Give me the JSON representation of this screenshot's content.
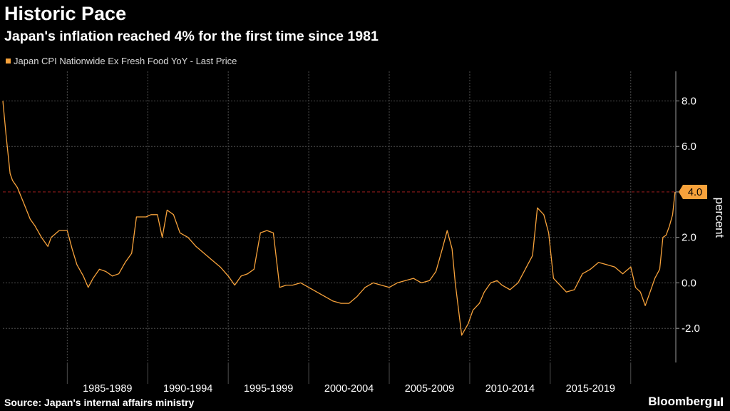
{
  "header": {
    "title": "Historic Pace",
    "subtitle": "Japan's inflation reached 4% for the first time since 1981"
  },
  "footer": {
    "source": "Source: Japan's internal affairs ministry",
    "brand": "Bloomberg",
    "brand_icon": "bloomberg-bars-icon"
  },
  "colors": {
    "background": "#000000",
    "line": "#f7a23b",
    "grid": "#4d4d4d",
    "reference": "#8b1a1a",
    "text": "#ffffff"
  },
  "chart_data": {
    "type": "line",
    "title": "Historic Pace",
    "subtitle": "Japan's inflation reached 4% for the first time since 1981",
    "xlabel": "",
    "ylabel": "percent",
    "legend": [
      "Japan CPI Nationwide Ex Fresh Food YoY - Last Price"
    ],
    "legend_position": "top-left",
    "x_range": [
      1981.0,
      2022.8
    ],
    "ylim": [
      -3.5,
      9.3
    ],
    "y_ticks": [
      -2.0,
      0.0,
      2.0,
      4.0,
      6.0,
      8.0
    ],
    "y_tick_labels": [
      "-2.0",
      "0.0",
      "2.0",
      "4.0",
      "6.0",
      "8.0"
    ],
    "x_tick_boundaries": [
      1985,
      1990,
      1995,
      2000,
      2005,
      2010,
      2015,
      2020
    ],
    "x_tick_labels": [
      "1985-1989",
      "1990-1994",
      "1995-1999",
      "2000-2004",
      "2005-2009",
      "2010-2014",
      "2015-2019"
    ],
    "grid": true,
    "reference_line": {
      "value": 4.0,
      "label": "4.0"
    },
    "series": [
      {
        "name": "Japan CPI Nationwide Ex Fresh Food YoY - Last Price",
        "x": [
          1981.0,
          1981.2,
          1981.45,
          1981.6,
          1981.9,
          1982.3,
          1982.7,
          1983.0,
          1983.4,
          1983.8,
          1984.0,
          1984.5,
          1984.8,
          1985.0,
          1985.3,
          1985.6,
          1986.0,
          1986.3,
          1986.6,
          1987.0,
          1987.4,
          1987.8,
          1988.2,
          1988.6,
          1989.0,
          1989.3,
          1989.6,
          1989.9,
          1990.2,
          1990.6,
          1990.9,
          1991.2,
          1991.6,
          1992.0,
          1992.5,
          1993.0,
          1993.5,
          1994.0,
          1994.5,
          1995.0,
          1995.4,
          1995.8,
          1996.2,
          1996.6,
          1997.0,
          1997.4,
          1997.8,
          1998.2,
          1998.6,
          1999.0,
          1999.5,
          2000.0,
          2000.5,
          2001.0,
          2001.5,
          2002.0,
          2002.5,
          2003.0,
          2003.5,
          2004.0,
          2004.5,
          2005.0,
          2005.5,
          2006.0,
          2006.5,
          2007.0,
          2007.5,
          2007.9,
          2008.3,
          2008.6,
          2008.9,
          2009.1,
          2009.5,
          2009.9,
          2010.2,
          2010.6,
          2010.9,
          2011.3,
          2011.7,
          2012.0,
          2012.5,
          2013.0,
          2013.3,
          2013.6,
          2013.9,
          2014.2,
          2014.6,
          2014.9,
          2015.2,
          2015.6,
          2016.0,
          2016.5,
          2017.0,
          2017.5,
          2018.0,
          2018.5,
          2019.0,
          2019.5,
          2020.0,
          2020.3,
          2020.6,
          2020.9,
          2021.2,
          2021.5,
          2021.8,
          2022.0,
          2022.2,
          2022.4,
          2022.6,
          2022.75
        ],
        "values": [
          8.0,
          6.5,
          4.8,
          4.5,
          4.2,
          3.5,
          2.8,
          2.5,
          2.0,
          1.6,
          2.0,
          2.3,
          2.3,
          2.3,
          1.5,
          0.8,
          0.3,
          -0.2,
          0.2,
          0.6,
          0.5,
          0.3,
          0.4,
          0.9,
          1.3,
          2.9,
          2.9,
          2.9,
          3.0,
          3.0,
          2.0,
          3.2,
          3.0,
          2.2,
          2.0,
          1.6,
          1.3,
          1.0,
          0.7,
          0.3,
          -0.1,
          0.3,
          0.4,
          0.6,
          2.2,
          2.3,
          2.2,
          -0.2,
          -0.1,
          -0.1,
          0.0,
          -0.2,
          -0.4,
          -0.6,
          -0.8,
          -0.9,
          -0.9,
          -0.6,
          -0.2,
          0.0,
          -0.1,
          -0.2,
          0.0,
          0.1,
          0.2,
          0.0,
          0.1,
          0.5,
          1.5,
          2.3,
          1.5,
          0.0,
          -2.3,
          -1.8,
          -1.2,
          -0.9,
          -0.4,
          0.0,
          0.1,
          -0.1,
          -0.3,
          0.0,
          0.4,
          0.8,
          1.2,
          3.3,
          3.0,
          2.2,
          0.2,
          -0.1,
          -0.4,
          -0.3,
          0.4,
          0.6,
          0.9,
          0.8,
          0.7,
          0.4,
          0.7,
          -0.2,
          -0.4,
          -1.0,
          -0.4,
          0.2,
          0.6,
          2.0,
          2.1,
          2.5,
          3.0,
          4.0
        ]
      }
    ]
  }
}
